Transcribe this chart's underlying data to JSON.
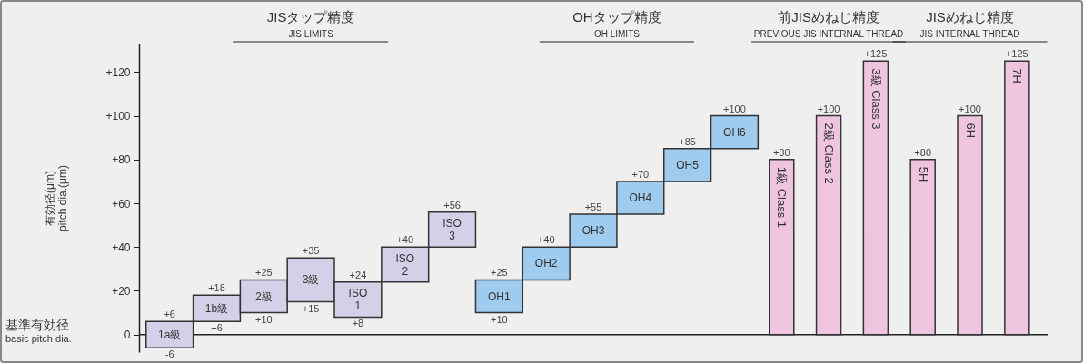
{
  "chart_data": {
    "type": "bar",
    "ylabel": "有効径(μm)\npitch dia.(μm)",
    "categories": [
      "1a級",
      "1b級",
      "2級",
      "3級",
      "ISO 1",
      "ISO 2",
      "ISO 3",
      "OH1",
      "OH2",
      "OH3",
      "OH4",
      "OH5",
      "OH6",
      "1級 Class 1",
      "2級 Class 2",
      "3級 Class 3",
      "5H",
      "6H",
      "7H"
    ],
    "series": [
      {
        "color": "#d5d0e8",
        "base": [
          -6,
          6,
          10,
          15,
          8,
          24,
          40,
          null,
          null,
          null,
          null,
          null,
          null,
          null,
          null,
          null,
          null,
          null,
          null
        ],
        "values": [
          12,
          12,
          15,
          20,
          16,
          16,
          16,
          null,
          null,
          null,
          null,
          null,
          null,
          null,
          null,
          null,
          null,
          null,
          null
        ]
      },
      {
        "color": "#9fcbee",
        "base": [
          null,
          null,
          null,
          null,
          null,
          null,
          null,
          10,
          25,
          40,
          55,
          70,
          85,
          null,
          null,
          null,
          null,
          null,
          null
        ],
        "values": [
          null,
          null,
          null,
          null,
          null,
          null,
          null,
          15,
          15,
          15,
          15,
          15,
          15,
          null,
          null,
          null,
          null,
          null,
          null
        ]
      },
      {
        "color": "#eec4de",
        "base": [
          null,
          null,
          null,
          null,
          null,
          null,
          null,
          null,
          null,
          null,
          null,
          null,
          null,
          0,
          0,
          0,
          null,
          null,
          null
        ],
        "values": [
          null,
          null,
          null,
          null,
          null,
          null,
          null,
          null,
          null,
          null,
          null,
          null,
          null,
          80,
          100,
          125,
          null,
          null,
          null
        ]
      },
      {
        "color": "#eec4de",
        "base": [
          null,
          null,
          null,
          null,
          null,
          null,
          null,
          null,
          null,
          null,
          null,
          null,
          null,
          null,
          null,
          null,
          0,
          0,
          0
        ],
        "values": [
          null,
          null,
          null,
          null,
          null,
          null,
          null,
          null,
          null,
          null,
          null,
          null,
          null,
          null,
          null,
          null,
          80,
          100,
          125
        ]
      }
    ],
    "ylim": [
      -8,
      133
    ],
    "yticks": [
      0,
      {
        "value": 20,
        "label": "+20"
      },
      {
        "value": 40,
        "label": "+40"
      },
      {
        "value": 60,
        "label": "+60"
      },
      {
        "value": 80,
        "label": "+80"
      },
      {
        "value": 100,
        "label": "+100"
      },
      {
        "value": 120,
        "label": "+120"
      }
    ],
    "ref_lines": [
      {
        "axis": "y",
        "value": 0,
        "label": "基準有効径\nbasic pitch dia."
      }
    ],
    "annotations": [
      "JISタップ精度\nJIS LIMITS",
      "OHタップ精度\nOH LIMITS",
      "前JISめねじ精度\nPREVIOUS JIS INTERNAL THREAD",
      "JISめねじ精度\nJIS INTERNAL THREAD",
      {
        "text": "+6",
        "x": "1a級",
        "y": 6
      },
      {
        "text": "-6",
        "x": "1a級",
        "y": -6
      },
      {
        "text": "+18",
        "x": "1b級",
        "y": 18
      },
      {
        "text": "+6",
        "x": "1b級",
        "y": 6
      },
      {
        "text": "+25",
        "x": "2級",
        "y": 25
      },
      {
        "text": "+10",
        "x": "2級",
        "y": 10
      },
      {
        "text": "+35",
        "x": "3級",
        "y": 35
      },
      {
        "text": "+15",
        "x": "3級",
        "y": 15
      },
      {
        "text": "+24",
        "x": "ISO 1",
        "y": 24
      },
      {
        "text": "+8",
        "x": "ISO 1",
        "y": 8
      },
      {
        "text": "+40",
        "x": "ISO 2",
        "y": 40
      },
      {
        "text": "+56",
        "x": "ISO 3",
        "y": 56
      },
      {
        "text": "+25",
        "x": "OH1",
        "y": 25
      },
      {
        "text": "+10",
        "x": "OH1",
        "y": 10
      },
      {
        "text": "+40",
        "x": "OH2",
        "y": 40
      },
      {
        "text": "+55",
        "x": "OH3",
        "y": 55
      },
      {
        "text": "+70",
        "x": "OH4",
        "y": 70
      },
      {
        "text": "+85",
        "x": "OH5",
        "y": 85
      },
      {
        "text": "+100",
        "x": "OH6",
        "y": 100
      },
      {
        "text": "+80",
        "x": "1級 Class 1",
        "y": 80
      },
      {
        "text": "+100",
        "x": "2級 Class 2",
        "y": 100
      },
      {
        "text": "+125",
        "x": "3級 Class 3",
        "y": 125
      },
      {
        "text": "+80",
        "x": "5H",
        "y": 80
      },
      {
        "text": "+100",
        "x": "6H",
        "y": 100
      },
      {
        "text": "+125",
        "x": "7H",
        "y": 125
      }
    ],
    "legend": false,
    "grid": false
  }
}
